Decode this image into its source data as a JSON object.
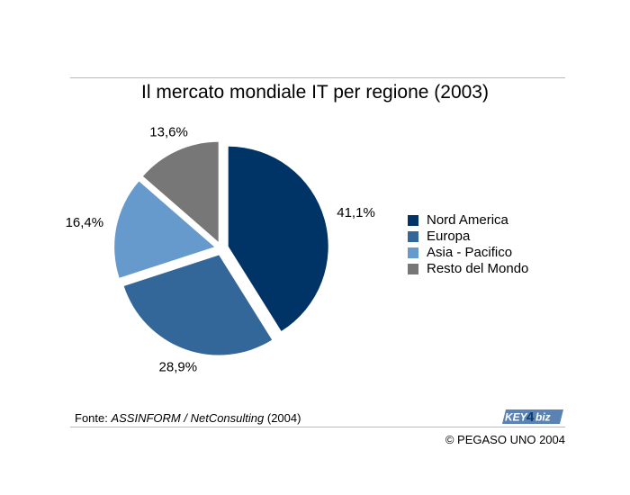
{
  "chart_data": {
    "type": "pie",
    "title": "Il mercato mondiale IT per regione (2003)",
    "categories": [
      "Nord America",
      "Europa",
      "Asia - Pacifico",
      "Resto del Mondo"
    ],
    "values": [
      41.1,
      28.9,
      16.4,
      13.6
    ],
    "value_labels": [
      "41,1%",
      "28,9%",
      "16,4%",
      "13,6%"
    ],
    "colors": [
      "#003366",
      "#336699",
      "#6699cc",
      "#777777"
    ],
    "legend_placement": "right",
    "exploded": true
  },
  "source": {
    "prefix": "Fonte: ",
    "name": "ASSINFORM / NetConsulting",
    "year": " (2004)"
  },
  "logo_text": "KEY4biz",
  "copyright": "© PEGASO UNO 2004"
}
